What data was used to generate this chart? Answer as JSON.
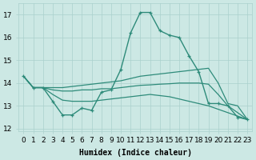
{
  "xlabel": "Humidex (Indice chaleur)",
  "x": [
    0,
    1,
    2,
    3,
    4,
    5,
    6,
    7,
    8,
    9,
    10,
    11,
    12,
    13,
    14,
    15,
    16,
    17,
    18,
    19,
    20,
    21,
    22,
    23
  ],
  "line_main": [
    14.3,
    13.8,
    13.8,
    13.2,
    12.6,
    12.6,
    12.9,
    12.8,
    13.6,
    13.7,
    14.6,
    16.2,
    17.1,
    17.1,
    16.3,
    16.1,
    16.0,
    15.2,
    14.5,
    13.1,
    13.1,
    13.0,
    12.5,
    12.4
  ],
  "line_upper": [
    14.3,
    13.8,
    13.8,
    13.8,
    13.8,
    13.85,
    13.9,
    13.95,
    14.0,
    14.05,
    14.1,
    14.2,
    14.3,
    14.35,
    14.4,
    14.45,
    14.5,
    14.55,
    14.6,
    14.65,
    14.0,
    13.1,
    13.0,
    12.4
  ],
  "line_middle": [
    14.3,
    13.8,
    13.8,
    13.7,
    13.65,
    13.65,
    13.7,
    13.7,
    13.75,
    13.75,
    13.8,
    13.85,
    13.9,
    13.92,
    13.95,
    13.97,
    14.0,
    14.0,
    14.0,
    13.95,
    13.5,
    13.0,
    12.7,
    12.4
  ],
  "line_lower": [
    14.3,
    13.8,
    13.8,
    13.5,
    13.25,
    13.2,
    13.2,
    13.2,
    13.25,
    13.3,
    13.35,
    13.4,
    13.45,
    13.5,
    13.45,
    13.4,
    13.3,
    13.2,
    13.1,
    13.0,
    12.85,
    12.7,
    12.55,
    12.4
  ],
  "color": "#2e8b7a",
  "bg_color": "#cce8e4",
  "grid_color": "#aad0cc",
  "ylim": [
    11.9,
    17.5
  ],
  "yticks": [
    12,
    13,
    14,
    15,
    16,
    17
  ],
  "xlim": [
    -0.5,
    23.5
  ],
  "label_fontsize": 7,
  "tick_fontsize": 6.5
}
